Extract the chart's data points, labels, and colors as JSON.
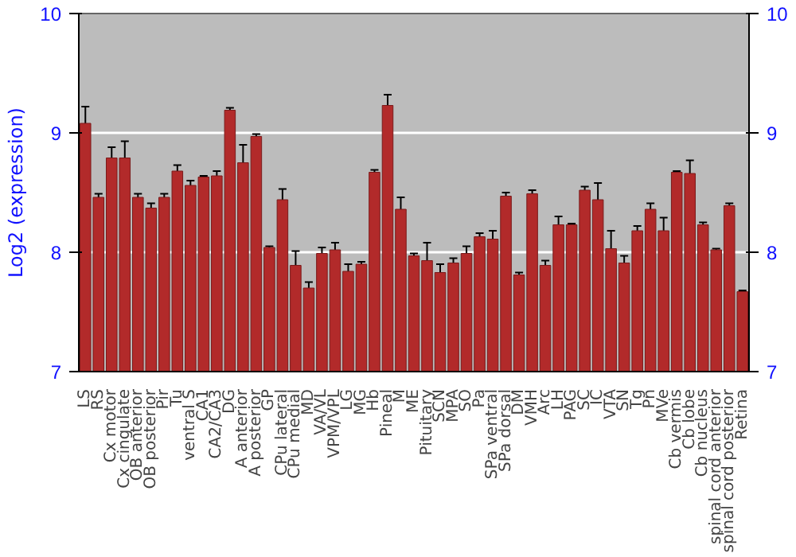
{
  "chart_data": {
    "type": "bar",
    "ylabel": "Log2 (expression)",
    "categories": [
      "LS",
      "RS",
      "Cx motor",
      "Cx cingulate",
      "OB anterior",
      "OB posterior",
      "Pir",
      "Tu",
      "ventral S",
      "CA1",
      "CA2/CA3",
      "DG",
      "A anterior",
      "A posterior",
      "GP",
      "CPu lateral",
      "CPu medial",
      "MD",
      "VA/VL",
      "VPM/VPL",
      "LG",
      "MG",
      "Hb",
      "Pineal",
      "M",
      "ME",
      "Pituitary",
      "SCN",
      "MPA",
      "SO",
      "Pa",
      "SPa ventral",
      "SPa dorsal",
      "DM",
      "VMH",
      "Arc",
      "LH",
      "PAG",
      "SC",
      "IC",
      "VTA",
      "SN",
      "Tg",
      "Pn",
      "MVe",
      "Cb vermis",
      "Cb lobe",
      "Cb nucleus",
      "spinal cord anterior",
      "spinal cord posterior",
      "Retina"
    ],
    "series": [
      {
        "color": "#b22a2a",
        "values": [
          9.08,
          8.46,
          8.79,
          8.79,
          8.46,
          8.37,
          8.46,
          8.68,
          8.56,
          8.63,
          8.64,
          9.19,
          8.75,
          8.97,
          8.04,
          8.44,
          7.89,
          7.7,
          7.99,
          8.02,
          7.84,
          7.9,
          8.67,
          9.23,
          8.36,
          7.97,
          7.93,
          7.83,
          7.91,
          7.99,
          8.13,
          8.11,
          8.47,
          7.81,
          8.49,
          7.89,
          8.23,
          8.23,
          8.52,
          8.44,
          8.03,
          7.91,
          8.18,
          8.36,
          8.18,
          8.67,
          8.66,
          8.23,
          8.02,
          8.39,
          7.67
        ],
        "errors": [
          0.14,
          0.03,
          0.09,
          0.14,
          0.03,
          0.04,
          0.03,
          0.05,
          0.04,
          0.01,
          0.04,
          0.02,
          0.15,
          0.02,
          0.01,
          0.09,
          0.12,
          0.05,
          0.05,
          0.06,
          0.06,
          0.02,
          0.02,
          0.09,
          0.1,
          0.02,
          0.15,
          0.07,
          0.04,
          0.06,
          0.03,
          0.07,
          0.03,
          0.02,
          0.03,
          0.04,
          0.07,
          0.01,
          0.03,
          0.14,
          0.15,
          0.06,
          0.04,
          0.05,
          0.11,
          0.01,
          0.11,
          0.02,
          0.01,
          0.02,
          0.01
        ]
      }
    ],
    "ylim": [
      7,
      10
    ],
    "yticks": [
      7,
      8,
      9,
      10
    ],
    "y2lim": [
      7,
      10
    ],
    "y2ticks": [
      7,
      8,
      9,
      10
    ],
    "grid": "y"
  }
}
